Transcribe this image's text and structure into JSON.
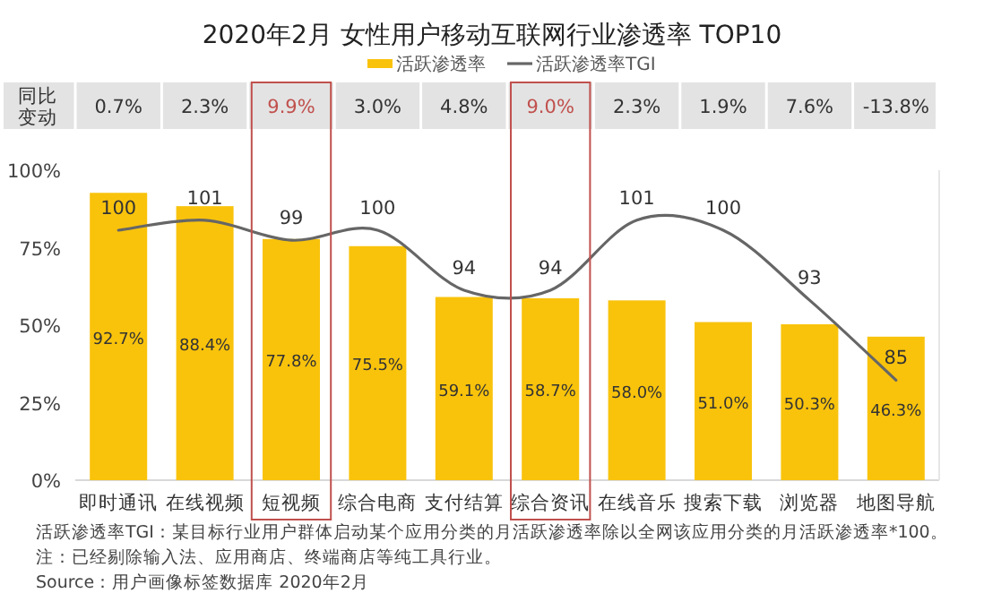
{
  "chart_data": {
    "type": "bar",
    "title": "2020年2月 女性用户移动互联网行业渗透率 TOP10",
    "categories": [
      "即时通讯",
      "在线视频",
      "短视频",
      "综合电商",
      "支付结算",
      "综合资讯",
      "在线音乐",
      "搜索下载",
      "浏览器",
      "地图导航"
    ],
    "series": [
      {
        "name": "活跃渗透率",
        "color": "#f9c30c",
        "values": [
          92.7,
          88.4,
          77.8,
          75.5,
          59.1,
          58.7,
          58.0,
          51.0,
          50.3,
          46.3
        ],
        "value_labels": [
          "92.7%",
          "88.4%",
          "77.8%",
          "75.5%",
          "59.1%",
          "58.7%",
          "58.0%",
          "51.0%",
          "50.3%",
          "46.3%"
        ]
      },
      {
        "name": "活跃渗透率TGI",
        "type": "line",
        "axis": "y2",
        "color": "#666666",
        "values": [
          100,
          101,
          99,
          100,
          94,
          94,
          101,
          100,
          93,
          85
        ],
        "value_labels": [
          "100",
          "101",
          "99",
          "100",
          "94",
          "94",
          "101",
          "100",
          "93",
          "85"
        ]
      }
    ],
    "ylim": [
      0,
      100
    ],
    "yticks": [
      {
        "value": 0,
        "label": "0%"
      },
      {
        "value": 25,
        "label": "25%"
      },
      {
        "value": 50,
        "label": "50%"
      },
      {
        "value": 75,
        "label": "75%"
      },
      {
        "value": 100,
        "label": "100%"
      }
    ],
    "y2lim": [
      75,
      106
    ],
    "tick_labels": "y",
    "legend": "top",
    "annotations": [
      "同比变动",
      "0.7%",
      "2.3%",
      "9.9%",
      "3.0%",
      "4.8%",
      "9.0%",
      "2.3%",
      "1.9%",
      "7.6%",
      "-13.8%",
      "活跃渗透率TGI：某目标行业用户群体启动某个应用分类的月活跃渗透率除以全网该应用分类的月活跃渗透率*100。",
      "注：已经剔除输入法、应用商店、终端商店等纯工具行业。",
      "Source：用户画像标签数据库 2020年2月"
    ]
  }
}
